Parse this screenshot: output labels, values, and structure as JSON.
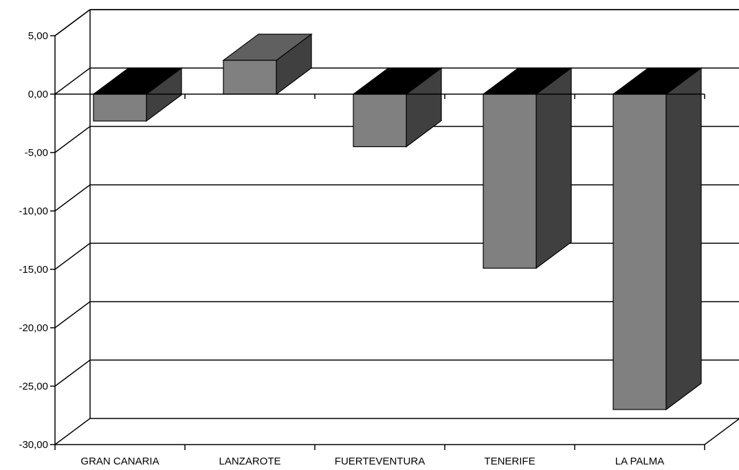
{
  "chart_data": {
    "type": "bar",
    "title": "",
    "xlabel": "",
    "ylabel": "",
    "categories": [
      "GRAN CANARIA",
      "LANZAROTE",
      "FUERTEVENTURA",
      "TENERIFE",
      "LA PALMA"
    ],
    "values": [
      -2.3,
      2.9,
      -4.5,
      -14.9,
      -27.0
    ],
    "ylim": [
      -30,
      5
    ],
    "yticks": [
      5,
      0,
      -5,
      -10,
      -15,
      -20,
      -25,
      -30
    ],
    "ytick_labels": [
      "5,00",
      "0,00",
      "-5,00",
      "-10,00",
      "-15,00",
      "-20,00",
      "-25,00",
      "-30,00"
    ],
    "grid": true,
    "three_d": true,
    "colors": {
      "front": "#808080",
      "side": "#404040",
      "top_positive": "#606060",
      "top_negative": "#000000"
    }
  }
}
